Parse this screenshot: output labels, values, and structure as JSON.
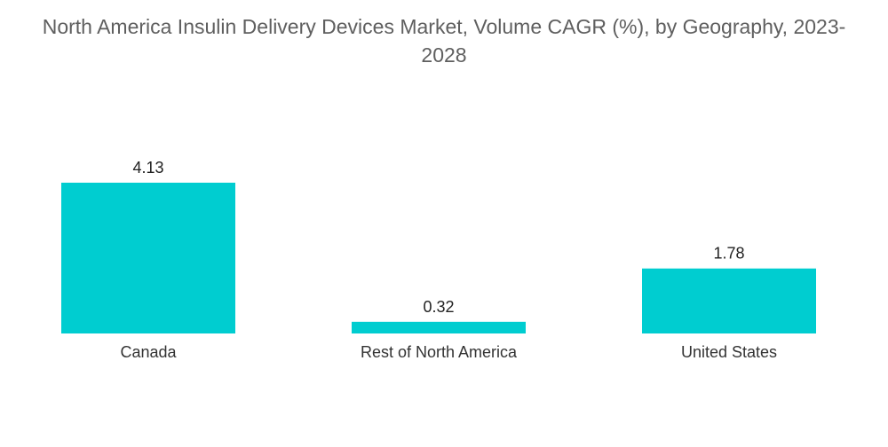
{
  "chart_data": {
    "type": "bar",
    "title": "North America Insulin Delivery Devices Market, Volume CAGR (%), by Geography, 2023-2028",
    "categories": [
      "Canada",
      "Rest of North America",
      "United States"
    ],
    "values": [
      4.13,
      0.32,
      1.78
    ],
    "value_labels": [
      "4.13",
      "0.32",
      "1.78"
    ],
    "xlabel": "",
    "ylabel": "",
    "ylim": [
      0,
      4.13
    ],
    "grid": false,
    "legend": "none",
    "colors": {
      "bar": "#00cdd0",
      "title": "#5f5f5f",
      "label": "#222222"
    }
  }
}
